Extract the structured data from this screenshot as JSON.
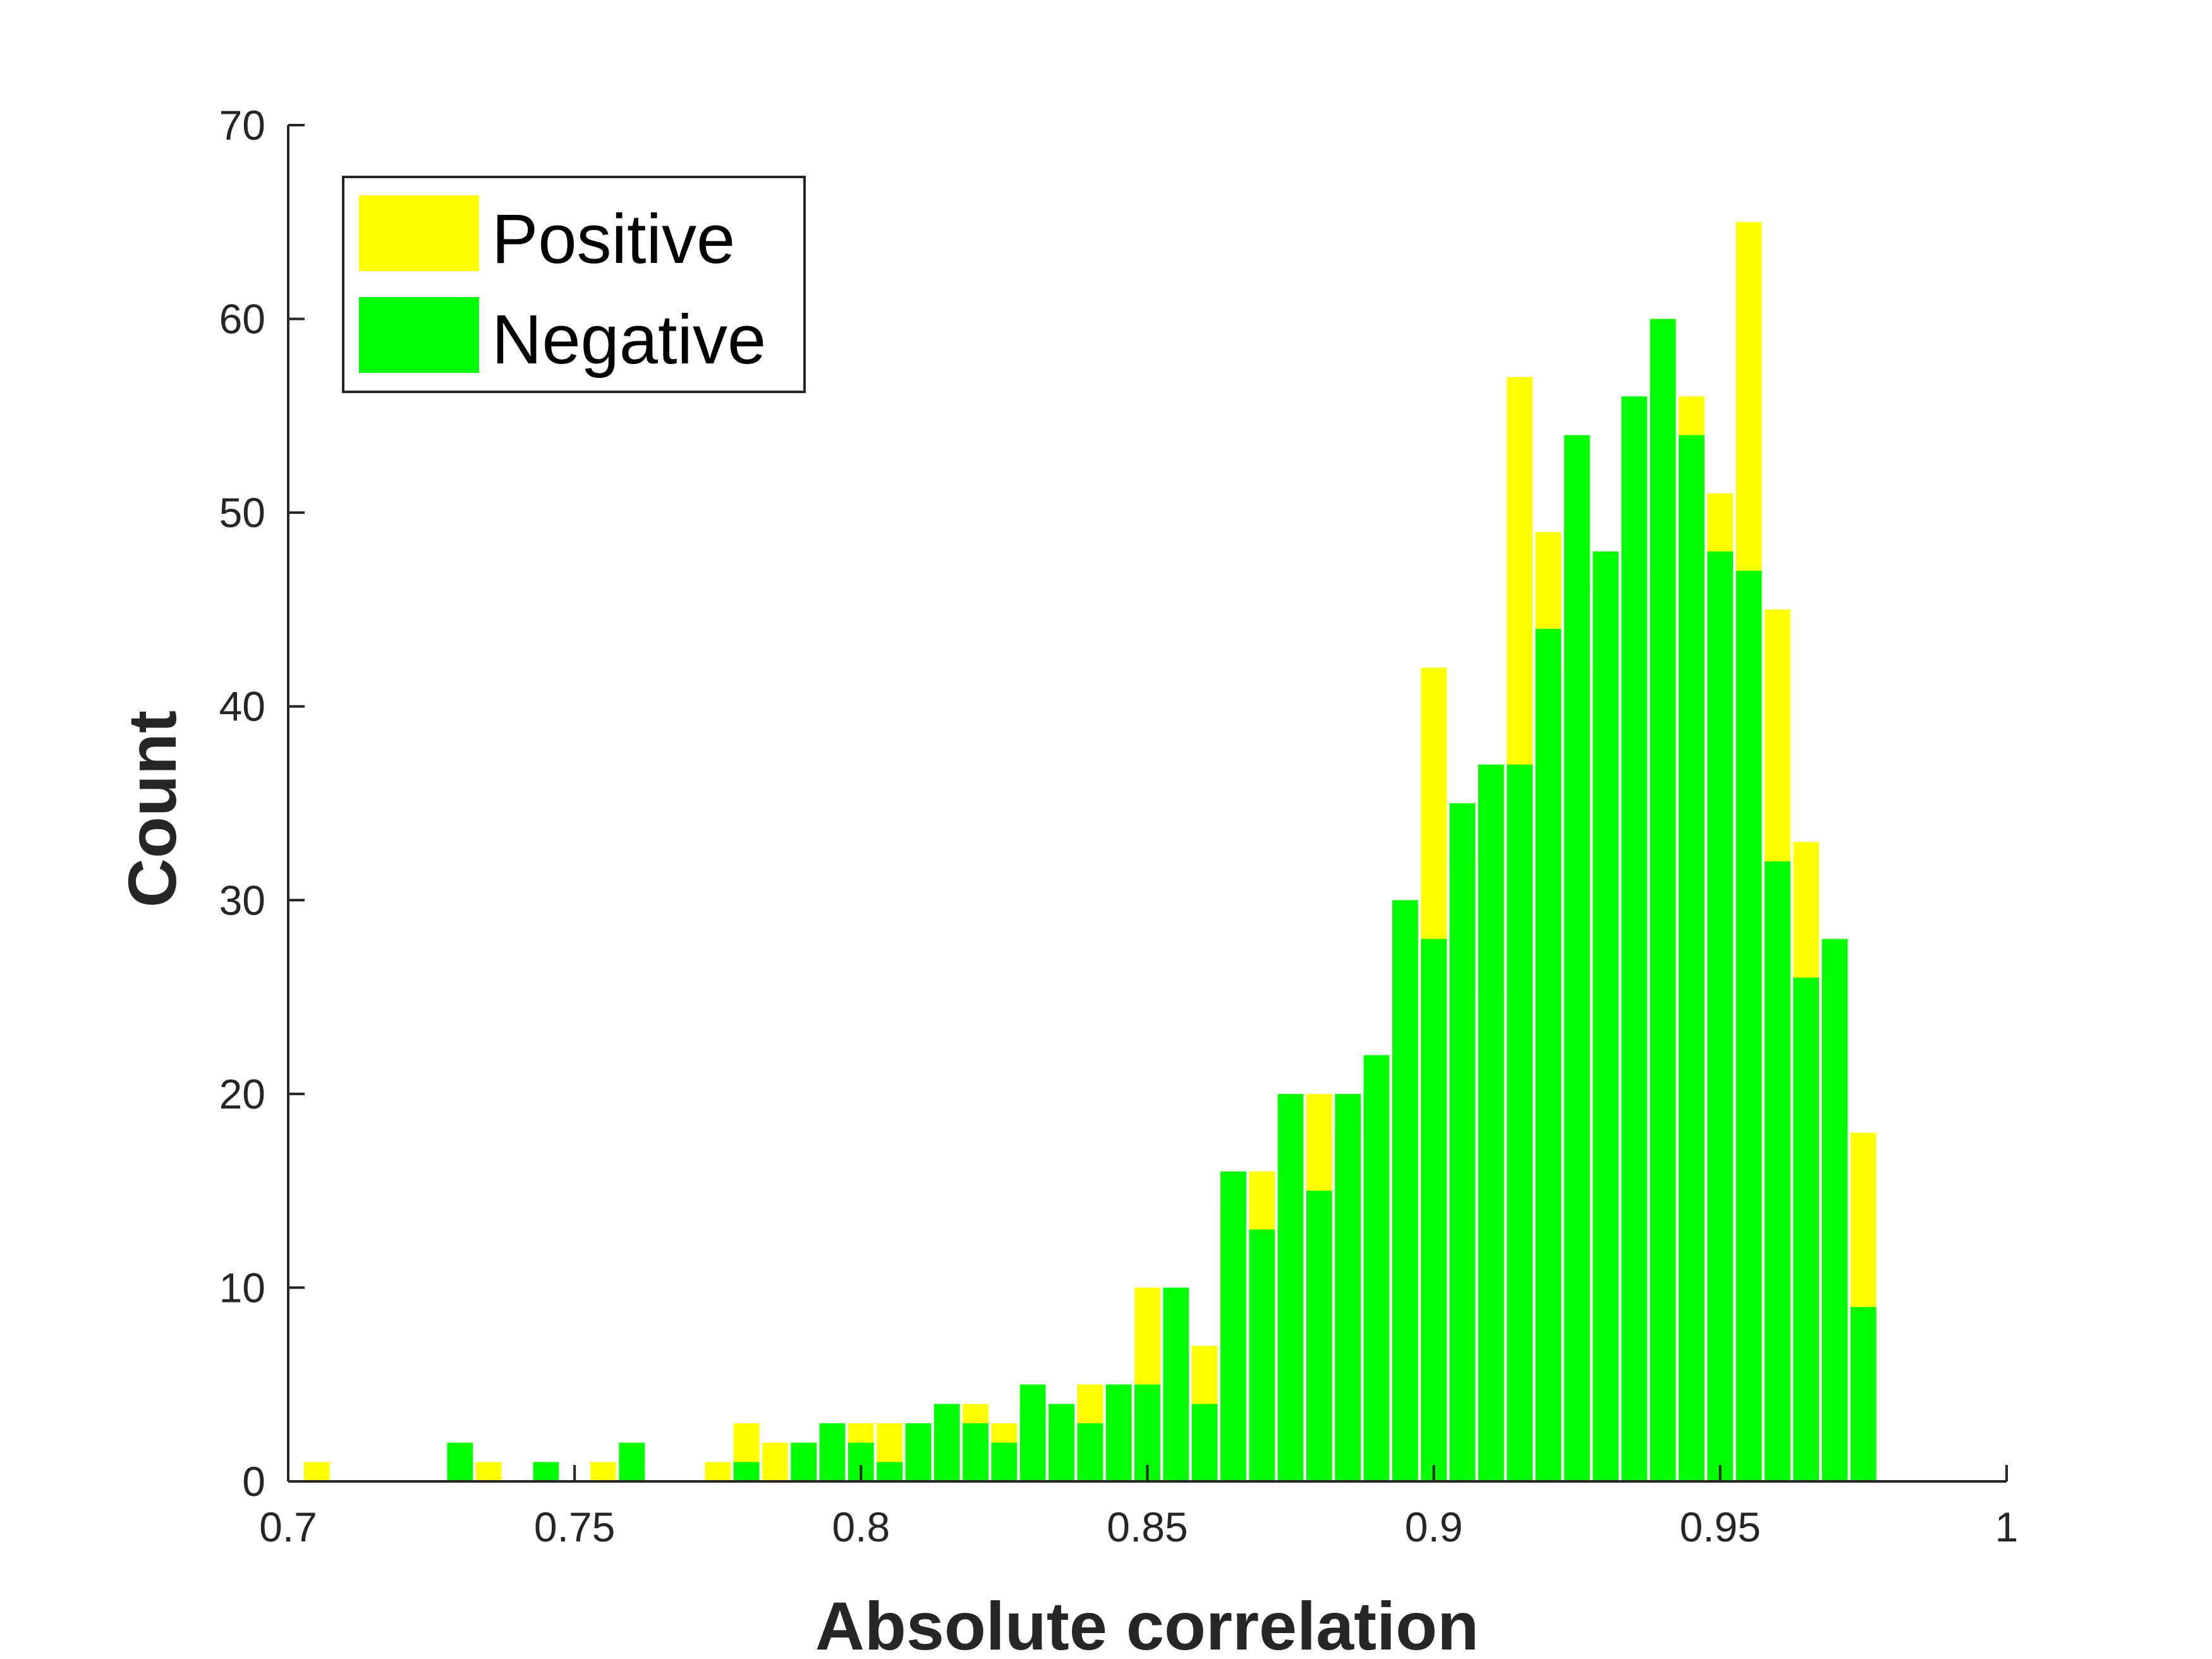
{
  "chart_data": {
    "type": "bar",
    "title": "",
    "xlabel": "Absolute correlation",
    "ylabel": "Count",
    "xlim": [
      0.7,
      1.0
    ],
    "ylim": [
      0,
      70
    ],
    "xticks": [
      0.7,
      0.75,
      0.8,
      0.85,
      0.9,
      0.95,
      1.0
    ],
    "xtick_labels": [
      "0.7",
      "0.75",
      "0.8",
      "0.85",
      "0.9",
      "0.95",
      "1"
    ],
    "yticks": [
      0,
      10,
      20,
      30,
      40,
      50,
      60,
      70
    ],
    "ytick_labels": [
      "0",
      "10",
      "20",
      "30",
      "40",
      "50",
      "60",
      "70"
    ],
    "grid": false,
    "legend_position": "top-left",
    "series": [
      {
        "name": "Positive",
        "color": "#ffff00",
        "x": [
          0.705,
          0.735,
          0.745,
          0.755,
          0.76,
          0.775,
          0.78,
          0.785,
          0.79,
          0.8,
          0.805,
          0.81,
          0.815,
          0.82,
          0.825,
          0.83,
          0.835,
          0.84,
          0.845,
          0.85,
          0.855,
          0.86,
          0.865,
          0.87,
          0.875,
          0.88,
          0.885,
          0.89,
          0.895,
          0.9,
          0.905,
          0.91,
          0.915,
          0.92,
          0.925,
          0.93,
          0.935,
          0.94,
          0.945,
          0.95,
          0.955,
          0.96,
          0.965,
          0.97,
          0.975
        ],
        "values": [
          1,
          1,
          1,
          1,
          1,
          1,
          3,
          2,
          1,
          3,
          3,
          1,
          3,
          4,
          3,
          4,
          3,
          5,
          3,
          10,
          7,
          7,
          14,
          16,
          16,
          20,
          18,
          20,
          28,
          42,
          32,
          25,
          57,
          49,
          42,
          46,
          47,
          60,
          56,
          51,
          65,
          45,
          33,
          26,
          18
        ]
      },
      {
        "name": "Negative",
        "color": "#00ff00",
        "x": [
          0.73,
          0.745,
          0.76,
          0.78,
          0.79,
          0.795,
          0.8,
          0.805,
          0.81,
          0.815,
          0.82,
          0.825,
          0.83,
          0.835,
          0.84,
          0.845,
          0.85,
          0.855,
          0.86,
          0.865,
          0.87,
          0.875,
          0.88,
          0.885,
          0.89,
          0.895,
          0.9,
          0.905,
          0.91,
          0.915,
          0.92,
          0.925,
          0.93,
          0.935,
          0.94,
          0.945,
          0.95,
          0.955,
          0.96,
          0.965,
          0.97,
          0.975,
          0.98
        ],
        "values": [
          2,
          1,
          2,
          1,
          2,
          3,
          2,
          1,
          3,
          4,
          3,
          2,
          5,
          4,
          3,
          5,
          5,
          10,
          4,
          16,
          13,
          20,
          15,
          20,
          22,
          30,
          28,
          35,
          37,
          37,
          44,
          54,
          48,
          56,
          60,
          54,
          48,
          47,
          32,
          26,
          28,
          9,
          0
        ]
      }
    ]
  }
}
